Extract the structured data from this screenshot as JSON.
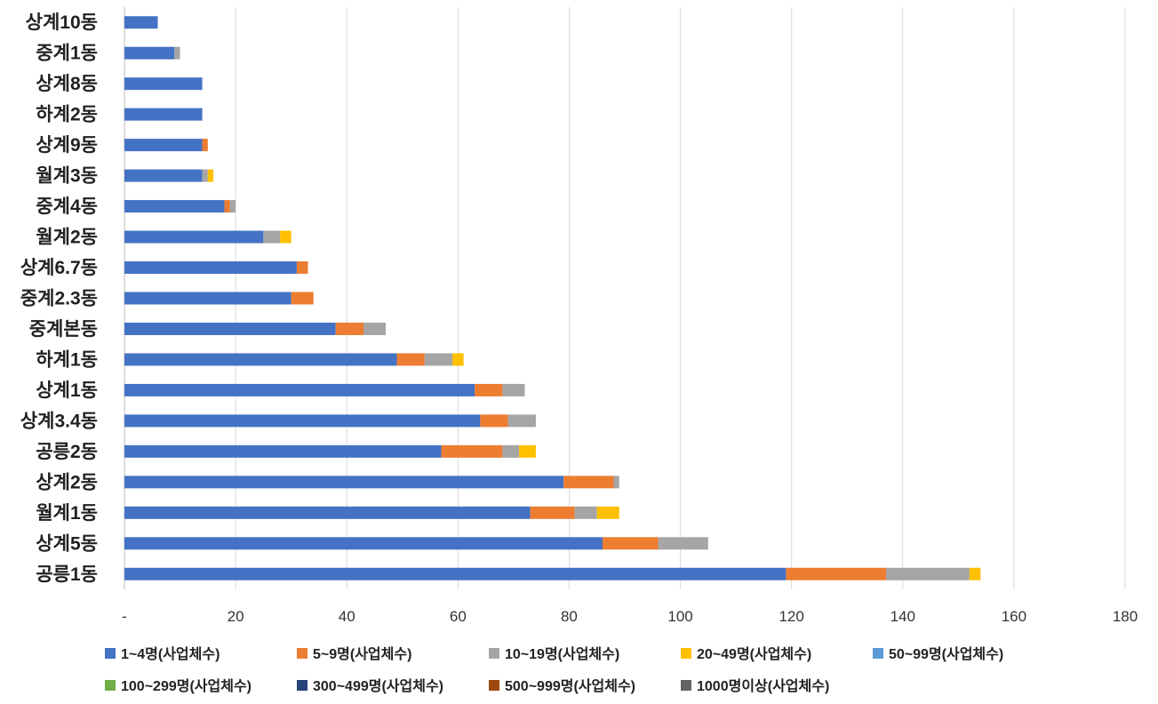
{
  "chart_data": {
    "type": "bar",
    "orientation": "horizontal",
    "stacked": true,
    "title": "",
    "xlabel": "",
    "ylabel": "",
    "xlim": [
      0,
      180
    ],
    "x_ticks": [
      0,
      20,
      40,
      60,
      80,
      100,
      120,
      140,
      160,
      180
    ],
    "x_tick_labels": [
      "-",
      "20",
      "40",
      "60",
      "80",
      "100",
      "120",
      "140",
      "160",
      "180"
    ],
    "grid": "vertical",
    "legend_position": "bottom",
    "categories": [
      "상계10동",
      "중계1동",
      "상계8동",
      "하계2동",
      "상계9동",
      "월계3동",
      "중계4동",
      "월계2동",
      "상계6.7동",
      "중계2.3동",
      "중계본동",
      "하계1동",
      "상계1동",
      "상계3.4동",
      "공릉2동",
      "상계2동",
      "월계1동",
      "상계5동",
      "공릉1동"
    ],
    "series": [
      {
        "name": "1~4명(사업체수)",
        "color": "#4472C4",
        "values": [
          6,
          9,
          14,
          14,
          14,
          14,
          18,
          25,
          31,
          30,
          38,
          49,
          63,
          64,
          57,
          79,
          73,
          86,
          119
        ]
      },
      {
        "name": "5~9명(사업체수)",
        "color": "#ED7D31",
        "values": [
          0,
          0,
          0,
          0,
          1,
          0,
          1,
          0,
          2,
          4,
          5,
          5,
          5,
          5,
          11,
          9,
          8,
          10,
          18
        ]
      },
      {
        "name": "10~19명(사업체수)",
        "color": "#A5A5A5",
        "values": [
          0,
          1,
          0,
          0,
          0,
          1,
          1,
          3,
          0,
          0,
          4,
          5,
          4,
          5,
          3,
          1,
          4,
          9,
          15
        ]
      },
      {
        "name": "20~49명(사업체수)",
        "color": "#FFC000",
        "values": [
          0,
          0,
          0,
          0,
          0,
          1,
          0,
          2,
          0,
          0,
          0,
          2,
          0,
          0,
          3,
          0,
          4,
          0,
          2
        ]
      },
      {
        "name": "50~99명(사업체수)",
        "color": "#5B9BD5",
        "values": [
          0,
          0,
          0,
          0,
          0,
          0,
          0,
          0,
          0,
          0,
          0,
          0,
          0,
          0,
          0,
          0,
          0,
          0,
          0
        ]
      },
      {
        "name": "100~299명(사업체수)",
        "color": "#70AD47",
        "values": [
          0,
          0,
          0,
          0,
          0,
          0,
          0,
          0,
          0,
          0,
          0,
          0,
          0,
          0,
          0,
          0,
          0,
          0,
          0
        ]
      },
      {
        "name": "300~499명(사업체수)",
        "color": "#264478",
        "values": [
          0,
          0,
          0,
          0,
          0,
          0,
          0,
          0,
          0,
          0,
          0,
          0,
          0,
          0,
          0,
          0,
          0,
          0,
          0
        ]
      },
      {
        "name": "500~999명(사업체수)",
        "color": "#9E480E",
        "values": [
          0,
          0,
          0,
          0,
          0,
          0,
          0,
          0,
          0,
          0,
          0,
          0,
          0,
          0,
          0,
          0,
          0,
          0,
          0
        ]
      },
      {
        "name": "1000명이상(사업체수)",
        "color": "#636363",
        "values": [
          0,
          0,
          0,
          0,
          0,
          0,
          0,
          0,
          0,
          0,
          0,
          0,
          0,
          0,
          0,
          0,
          0,
          0,
          0
        ]
      }
    ]
  }
}
